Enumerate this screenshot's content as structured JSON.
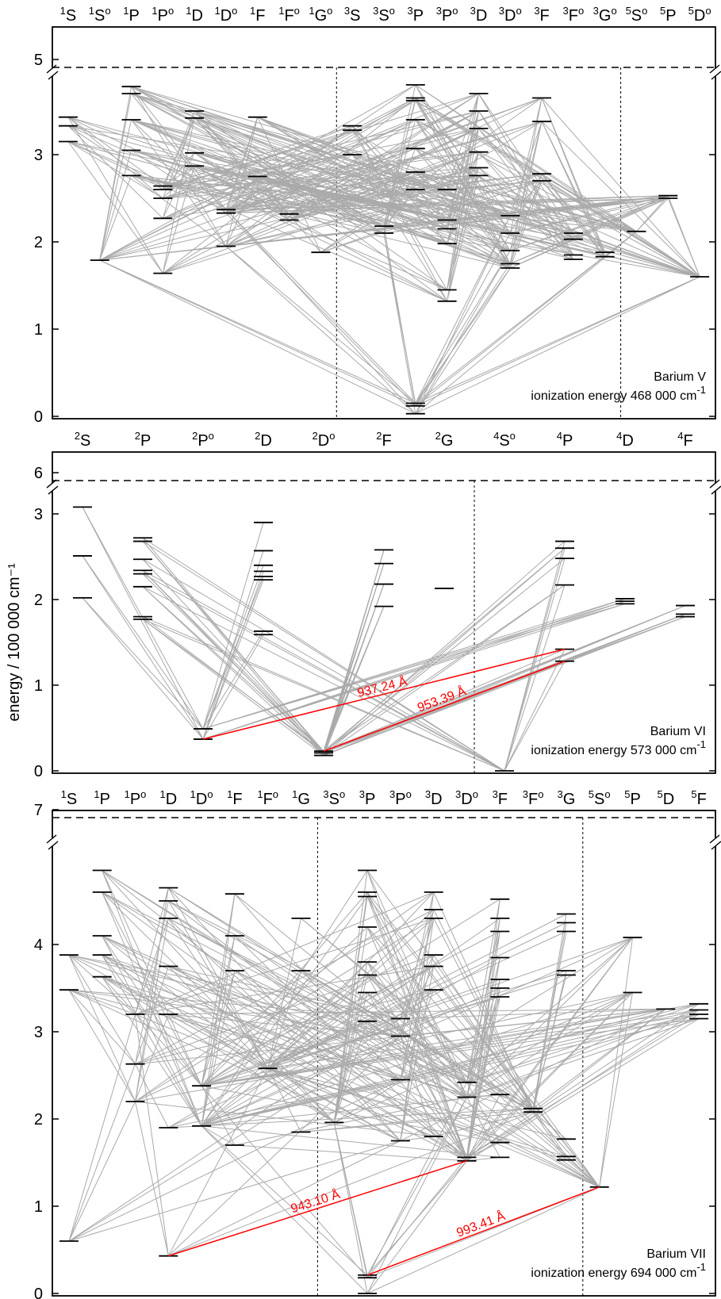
{
  "figure": {
    "ylabel": "energy / 100 000 cm⁻¹",
    "ylabel_unit_exp": "-1"
  },
  "panels": [
    {
      "name": "Barium V",
      "ionization_label": "ionization energy",
      "ionization_value": "468 000",
      "ionization_unit": "cm",
      "ionization_unit_exp": "-1",
      "ylim": [
        0,
        5
      ],
      "ionization_tick": "5",
      "yticks": [
        "0",
        "1",
        "2",
        "3"
      ],
      "terms": [
        {
          "mult": "1",
          "L": "S",
          "odd": false
        },
        {
          "mult": "1",
          "L": "S",
          "odd": true
        },
        {
          "mult": "1",
          "L": "P",
          "odd": false
        },
        {
          "mult": "1",
          "L": "P",
          "odd": true
        },
        {
          "mult": "1",
          "L": "D",
          "odd": false
        },
        {
          "mult": "1",
          "L": "D",
          "odd": true
        },
        {
          "mult": "1",
          "L": "F",
          "odd": false
        },
        {
          "mult": "1",
          "L": "F",
          "odd": true
        },
        {
          "mult": "1",
          "L": "G",
          "odd": true
        },
        {
          "mult": "3",
          "L": "S",
          "odd": false
        },
        {
          "mult": "3",
          "L": "S",
          "odd": true
        },
        {
          "mult": "3",
          "L": "P",
          "odd": false
        },
        {
          "mult": "3",
          "L": "P",
          "odd": true
        },
        {
          "mult": "3",
          "L": "D",
          "odd": false
        },
        {
          "mult": "3",
          "L": "D",
          "odd": true
        },
        {
          "mult": "3",
          "L": "F",
          "odd": false
        },
        {
          "mult": "3",
          "L": "F",
          "odd": true
        },
        {
          "mult": "3",
          "L": "G",
          "odd": true
        },
        {
          "mult": "5",
          "L": "S",
          "odd": true
        },
        {
          "mult": "5",
          "L": "P",
          "odd": false
        },
        {
          "mult": "5",
          "L": "D",
          "odd": true
        }
      ],
      "multiplicity_dividers_after_term_index": [
        8,
        17
      ],
      "levels": [
        [
          3.15,
          3.33,
          3.43
        ],
        [
          1.79
        ],
        [
          2.76,
          3.05,
          3.4,
          3.7,
          3.78
        ],
        [
          1.64,
          2.27,
          2.5,
          2.6,
          2.64
        ],
        [
          2.87,
          3.02,
          3.42,
          3.5
        ],
        [
          1.95,
          2.33,
          2.37
        ],
        [
          2.75,
          3.43
        ],
        [
          2.25,
          2.32
        ],
        [
          1.88
        ],
        [
          3.0,
          3.28,
          3.33
        ],
        [
          2.1,
          2.18
        ],
        [
          0.03,
          0.12,
          0.15,
          2.6,
          2.8,
          3.07,
          3.4,
          3.62,
          3.65,
          3.8
        ],
        [
          1.32,
          1.45,
          1.98,
          2.15,
          2.25,
          2.6
        ],
        [
          2.76,
          2.85,
          3.03,
          3.3,
          3.5,
          3.7
        ],
        [
          1.7,
          1.75,
          1.9,
          2.1,
          2.3
        ],
        [
          2.7,
          2.78,
          3.38,
          3.65
        ],
        [
          1.8,
          1.85,
          2.03,
          2.1
        ],
        [
          1.83,
          1.88
        ],
        [
          2.12
        ],
        [
          2.5,
          2.53
        ],
        [
          1.6
        ]
      ],
      "highlighted_transitions": []
    },
    {
      "name": "Barium VI",
      "ionization_label": "ionization energy",
      "ionization_value": "573 000",
      "ionization_unit": "cm",
      "ionization_unit_exp": "-1",
      "ylim": [
        0,
        6
      ],
      "ionization_tick": "6",
      "yticks": [
        "0",
        "1",
        "2",
        "3"
      ],
      "terms": [
        {
          "mult": "2",
          "L": "S",
          "odd": false
        },
        {
          "mult": "2",
          "L": "P",
          "odd": false
        },
        {
          "mult": "2",
          "L": "P",
          "odd": true
        },
        {
          "mult": "2",
          "L": "D",
          "odd": false
        },
        {
          "mult": "2",
          "L": "D",
          "odd": true
        },
        {
          "mult": "2",
          "L": "F",
          "odd": false
        },
        {
          "mult": "2",
          "L": "G",
          "odd": false
        },
        {
          "mult": "4",
          "L": "S",
          "odd": true
        },
        {
          "mult": "4",
          "L": "P",
          "odd": false
        },
        {
          "mult": "4",
          "L": "D",
          "odd": false
        },
        {
          "mult": "4",
          "L": "F",
          "odd": false
        }
      ],
      "multiplicity_dividers_after_term_index": [
        6
      ],
      "levels": [
        [
          2.02,
          2.51,
          3.08
        ],
        [
          1.77,
          1.8,
          2.15,
          2.3,
          2.34,
          2.47,
          2.68,
          2.72
        ],
        [
          0.37,
          0.49
        ],
        [
          1.59,
          1.63,
          2.23,
          2.27,
          2.33,
          2.4,
          2.57,
          2.9
        ],
        [
          0.18,
          0.21,
          0.23
        ],
        [
          1.92,
          2.18,
          2.42,
          2.58
        ],
        [
          2.13
        ],
        [
          0.0
        ],
        [
          1.28,
          1.42,
          2.17,
          2.48,
          2.6,
          2.68
        ],
        [
          1.95,
          1.98,
          2.01
        ],
        [
          1.8,
          1.83,
          1.93
        ]
      ],
      "highlighted_transitions": [
        {
          "label": "937.24 Å",
          "from_term": 2,
          "from_level": 0.37,
          "to_term": 8,
          "to_level": 1.42
        },
        {
          "label": "953.39 Å",
          "from_term": 4,
          "from_level": 0.23,
          "to_term": 8,
          "to_level": 1.28
        }
      ]
    },
    {
      "name": "Barium VII",
      "ionization_label": "ionization energy",
      "ionization_value": "694 000",
      "ionization_unit": "cm",
      "ionization_unit_exp": "-1",
      "ylim": [
        0,
        7
      ],
      "ionization_tick": "7",
      "yticks": [
        "0",
        "1",
        "2",
        "3",
        "4"
      ],
      "terms": [
        {
          "mult": "1",
          "L": "S",
          "odd": false
        },
        {
          "mult": "1",
          "L": "P",
          "odd": false
        },
        {
          "mult": "1",
          "L": "P",
          "odd": true
        },
        {
          "mult": "1",
          "L": "D",
          "odd": false
        },
        {
          "mult": "1",
          "L": "D",
          "odd": true
        },
        {
          "mult": "1",
          "L": "F",
          "odd": false
        },
        {
          "mult": "1",
          "L": "F",
          "odd": true
        },
        {
          "mult": "1",
          "L": "G",
          "odd": false
        },
        {
          "mult": "3",
          "L": "S",
          "odd": true
        },
        {
          "mult": "3",
          "L": "P",
          "odd": false
        },
        {
          "mult": "3",
          "L": "P",
          "odd": true
        },
        {
          "mult": "3",
          "L": "D",
          "odd": false
        },
        {
          "mult": "3",
          "L": "D",
          "odd": true
        },
        {
          "mult": "3",
          "L": "F",
          "odd": false
        },
        {
          "mult": "3",
          "L": "F",
          "odd": true
        },
        {
          "mult": "3",
          "L": "G",
          "odd": false
        },
        {
          "mult": "5",
          "L": "S",
          "odd": true
        },
        {
          "mult": "5",
          "L": "P",
          "odd": false
        },
        {
          "mult": "5",
          "L": "D",
          "odd": false
        },
        {
          "mult": "5",
          "L": "F",
          "odd": false
        }
      ],
      "multiplicity_dividers_after_term_index": [
        7,
        15
      ],
      "levels": [
        [
          0.6,
          3.48,
          3.88
        ],
        [
          3.63,
          3.88,
          4.1,
          4.6,
          4.85
        ],
        [
          2.2,
          2.63,
          3.2
        ],
        [
          0.43,
          1.9,
          3.2,
          3.75,
          4.3,
          4.5,
          4.65
        ],
        [
          1.92,
          2.38
        ],
        [
          1.7,
          3.7,
          4.1,
          4.58
        ],
        [
          2.58
        ],
        [
          1.85,
          3.7,
          4.3
        ],
        [
          1.96
        ],
        [
          0.0,
          0.18,
          0.21,
          3.12,
          3.45,
          3.65,
          3.8,
          4.2,
          4.55,
          4.6,
          4.85
        ],
        [
          1.75,
          2.45,
          2.95,
          3.15
        ],
        [
          1.8,
          3.48,
          3.75,
          3.88,
          4.3,
          4.4,
          4.6
        ],
        [
          1.52,
          1.56,
          2.25,
          2.42
        ],
        [
          1.56,
          1.73,
          2.28,
          3.4,
          3.5,
          3.6,
          3.85,
          4.15,
          4.3,
          4.52
        ],
        [
          2.08,
          2.12
        ],
        [
          1.53,
          1.57,
          1.77,
          3.65,
          3.7,
          4.15,
          4.25,
          4.35
        ],
        [
          1.22
        ],
        [
          3.45,
          4.08
        ],
        [
          3.26
        ],
        [
          3.15,
          3.2,
          3.25,
          3.32
        ]
      ],
      "highlighted_transitions": [
        {
          "label": "943.10 Å",
          "from_term": 3,
          "from_level": 0.43,
          "to_term": 12,
          "to_level": 1.52
        },
        {
          "label": "993.41 Å",
          "from_term": 9,
          "from_level": 0.21,
          "to_term": 16,
          "to_level": 1.22
        }
      ]
    }
  ]
}
